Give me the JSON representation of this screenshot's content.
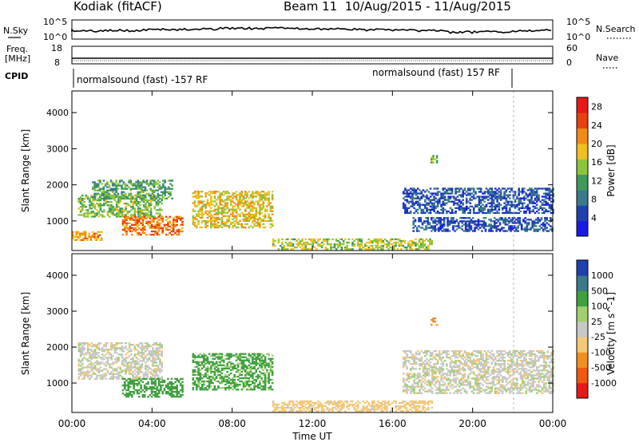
{
  "header": {
    "radar": "Kodiak (fitACF)",
    "beam_dates": "Beam 11  10/Aug/2015 - 11/Aug/2015"
  },
  "top_panels": {
    "nsky_label": "N.Sky",
    "nsky_ticks": [
      "10^5",
      "10^0"
    ],
    "nsearch_label": "N.Search",
    "nsearch_ticks": [
      "10^5",
      "10^0"
    ],
    "freq_label": "Freq.",
    "freq_unit": "[MHz]",
    "freq_ticks": [
      "18",
      "8"
    ],
    "nave_label": "Nave",
    "nave_ticks": [
      "60",
      "0"
    ],
    "cpid_label": "CPID",
    "cpid_left": "normalsound (fast) -157 RF",
    "cpid_right": "normalsound (fast) 157 RF"
  },
  "colors": {
    "power_scale": [
      "#1a1ae6",
      "#2040b0",
      "#3a7a8a",
      "#3e9a5a",
      "#8cc43c",
      "#f0c020",
      "#f08a18",
      "#e84010",
      "#e81818"
    ],
    "velocity_scale": [
      "#e81818",
      "#f05810",
      "#f09020",
      "#f5c878",
      "#c8c8c8",
      "#a0d070",
      "#40a040",
      "#3a7a8a",
      "#2040b0"
    ],
    "ground_scatter": "#b4b4b4"
  },
  "chart_data": [
    {
      "type": "heatmap",
      "panel": "power",
      "ylabel": "Slant Range [km]",
      "xlabel": "Time UT",
      "x_ticks": [
        "00:00",
        "04:00",
        "08:00",
        "12:00",
        "16:00",
        "20:00",
        "00:00"
      ],
      "xlim_hours": [
        0,
        24
      ],
      "y_ticks": [
        "1000",
        "2000",
        "3000",
        "4000"
      ],
      "ylim_km": [
        180,
        4600
      ],
      "colorbar_label": "Power [dB]",
      "colorbar_ticks": [
        "4",
        "8",
        "12",
        "16",
        "20",
        "24",
        "28"
      ],
      "colorbar_range": [
        0,
        30
      ],
      "echo_regions": [
        {
          "t": [
            0.3,
            4.5
          ],
          "r": [
            1100,
            1700
          ],
          "value": 14
        },
        {
          "t": [
            1.0,
            5.0
          ],
          "r": [
            1600,
            2100
          ],
          "value": 12
        },
        {
          "t": [
            2.5,
            5.5
          ],
          "r": [
            600,
            1100
          ],
          "value": 22
        },
        {
          "t": [
            6.0,
            10.0
          ],
          "r": [
            800,
            1800
          ],
          "value": 18
        },
        {
          "t": [
            0.0,
            1.5
          ],
          "r": [
            450,
            700
          ],
          "value": 20
        },
        {
          "t": [
            16.5,
            24.0
          ],
          "r": [
            1200,
            1900
          ],
          "value": 6
        },
        {
          "t": [
            17.0,
            24.0
          ],
          "r": [
            700,
            1100
          ],
          "value": 6
        },
        {
          "t": [
            10.0,
            18.0
          ],
          "r": [
            200,
            500
          ],
          "value": 16
        },
        {
          "t": [
            17.9,
            18.2
          ],
          "r": [
            2600,
            2800
          ],
          "value": 14
        }
      ]
    },
    {
      "type": "heatmap",
      "panel": "velocity",
      "ylabel": "Slant Range [km]",
      "xlabel": "Time UT",
      "x_ticks": [
        "00:00",
        "04:00",
        "08:00",
        "12:00",
        "16:00",
        "20:00",
        "00:00"
      ],
      "xlim_hours": [
        0,
        24
      ],
      "y_ticks": [
        "1000",
        "2000",
        "3000",
        "4000"
      ],
      "ylim_km": [
        180,
        4600
      ],
      "colorbar_label": "Velocity [m s^-1]",
      "colorbar_ticks": [
        "1000",
        "500",
        "100",
        "25",
        "-25",
        "-100",
        "-500",
        "-1000"
      ],
      "echo_regions": [
        {
          "t": [
            0.3,
            4.5
          ],
          "r": [
            1100,
            2100
          ],
          "value": 0
        },
        {
          "t": [
            2.5,
            5.5
          ],
          "r": [
            600,
            1100
          ],
          "value": 150
        },
        {
          "t": [
            6.0,
            10.0
          ],
          "r": [
            800,
            1800
          ],
          "value": 120
        },
        {
          "t": [
            16.5,
            24.0
          ],
          "r": [
            700,
            1900
          ],
          "value": 0
        },
        {
          "t": [
            10.0,
            18.0
          ],
          "r": [
            200,
            500
          ],
          "value": -60
        },
        {
          "t": [
            17.9,
            18.2
          ],
          "r": [
            2600,
            2800
          ],
          "value": -300
        }
      ]
    }
  ]
}
